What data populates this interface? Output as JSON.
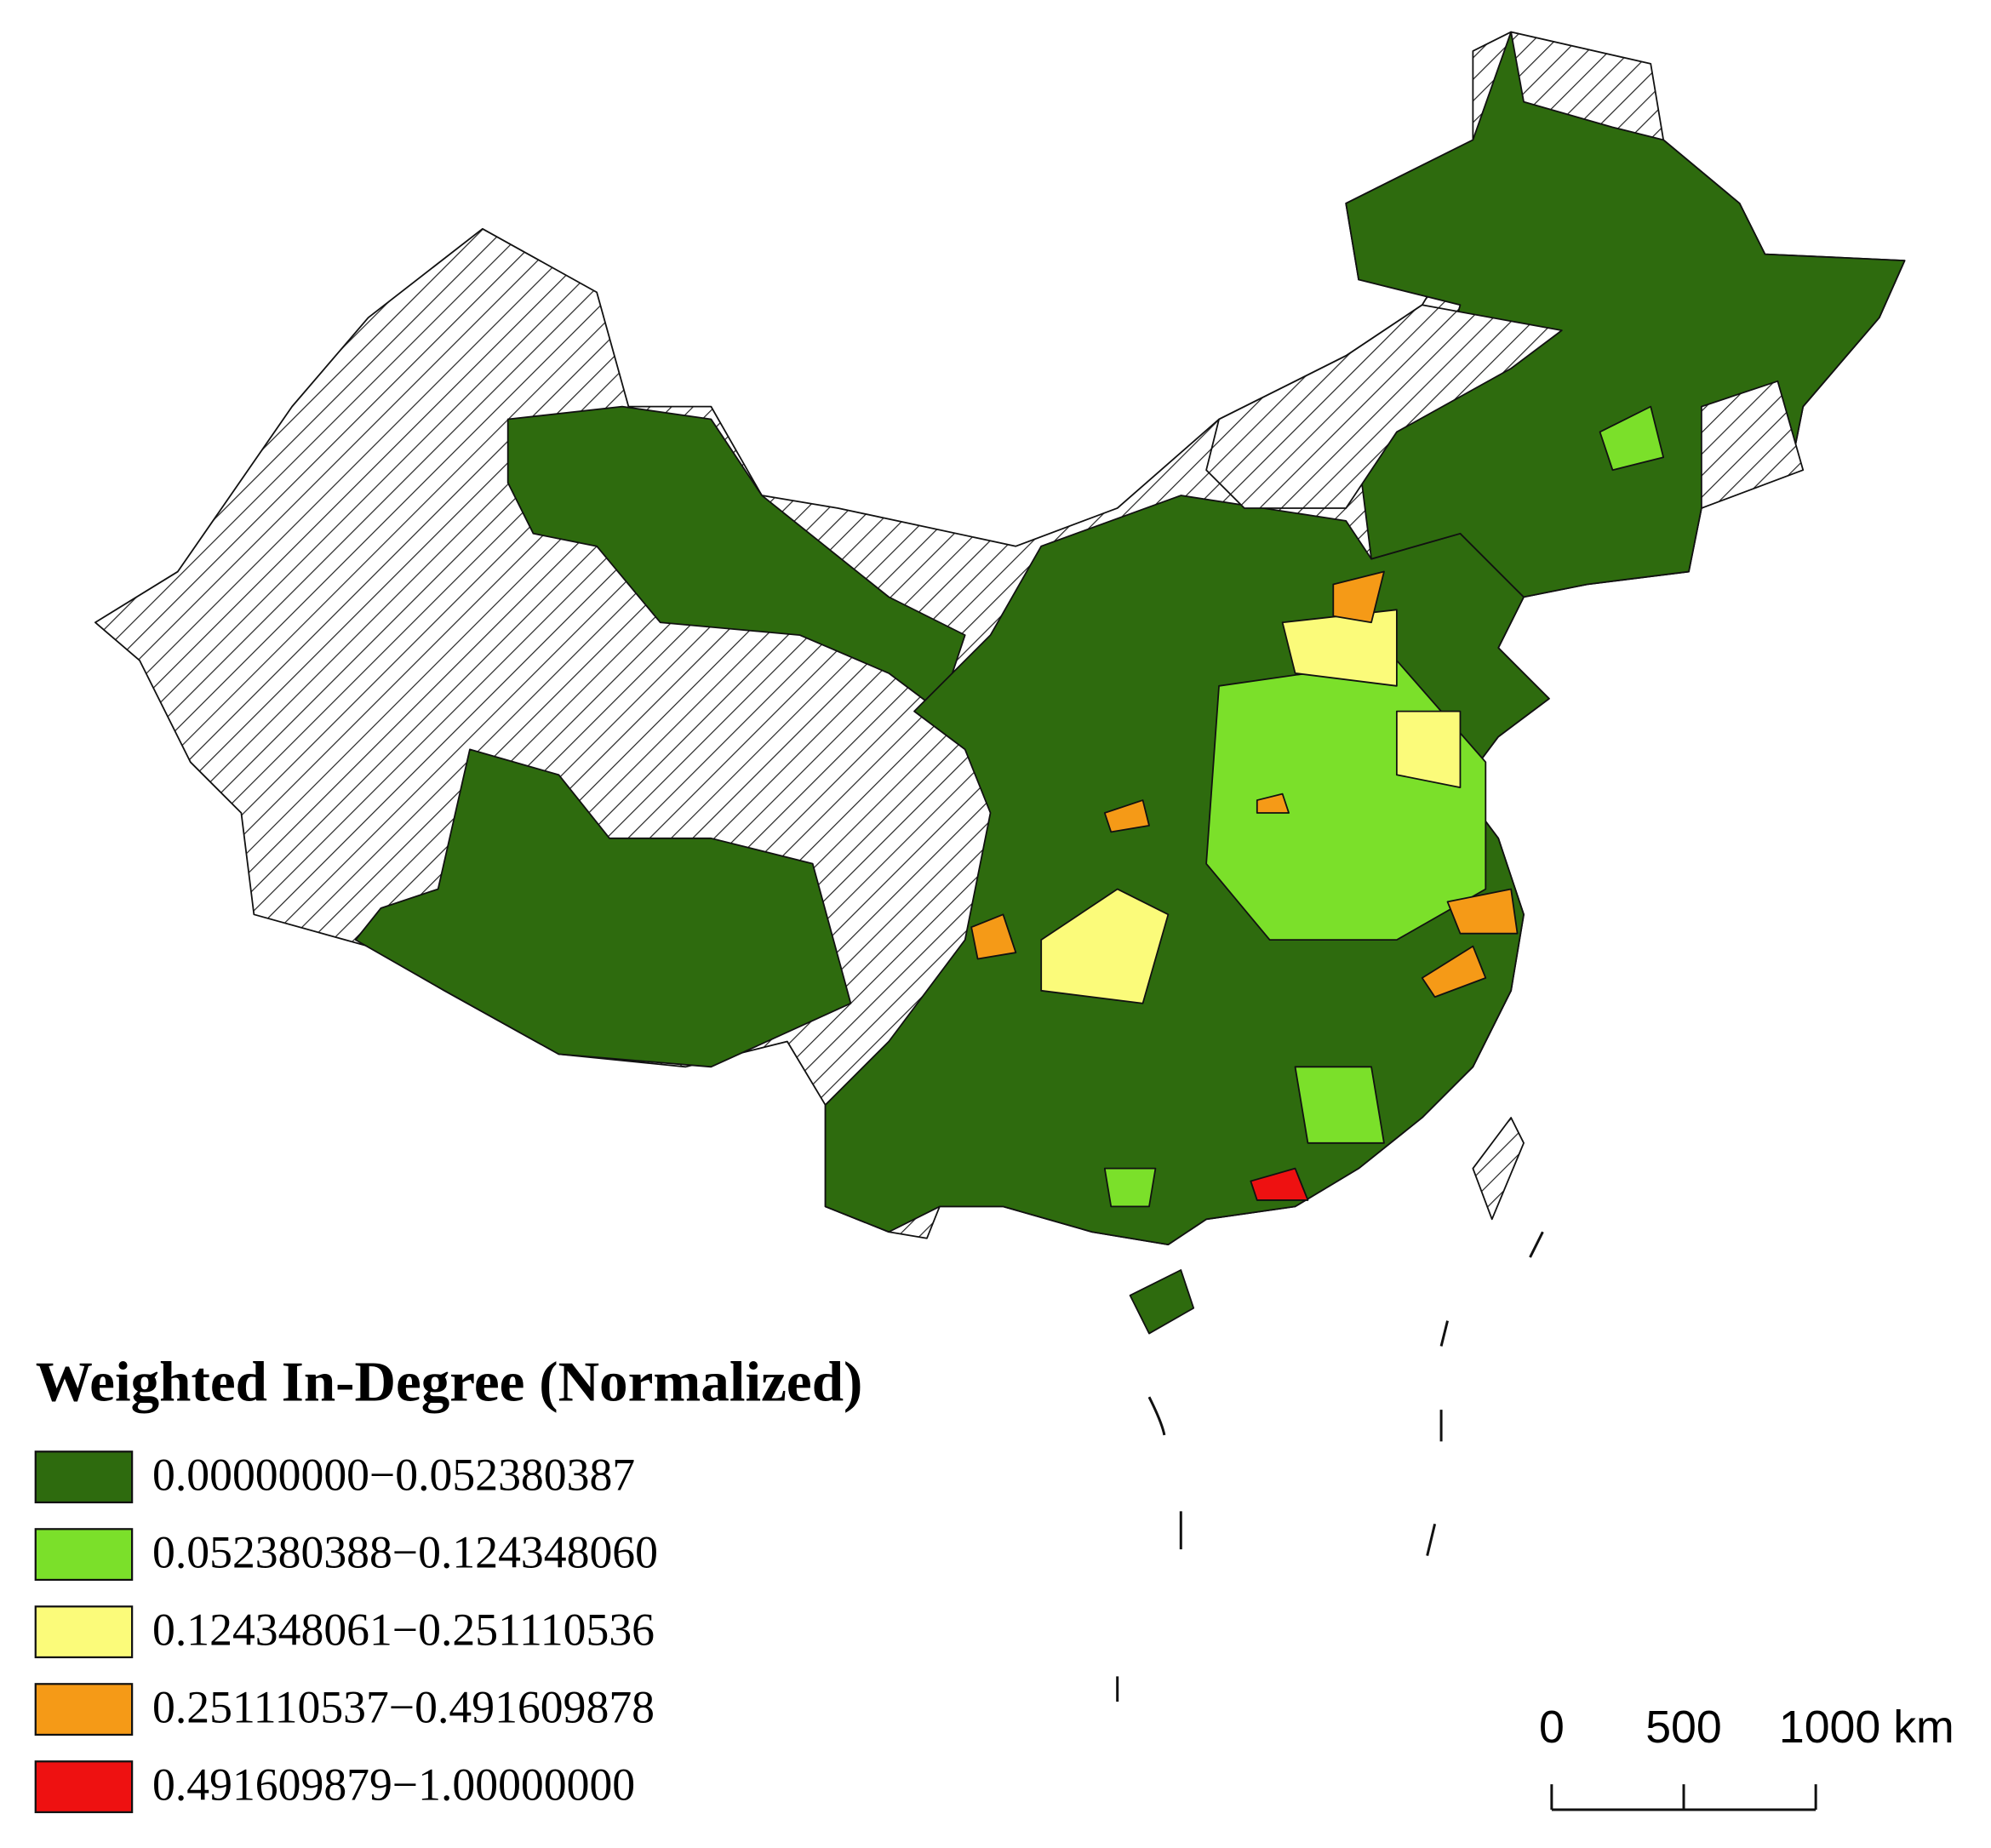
{
  "legend": {
    "title": "Weighted In-Degree (Normalized)",
    "classes": [
      {
        "label": "0.00000000−0.052380387",
        "color": "#2e6b0e"
      },
      {
        "label": "0.052380388−0.124348060",
        "color": "#7be02a"
      },
      {
        "label": "0.124348061−0.251110536",
        "color": "#fbfb7a"
      },
      {
        "label": "0.251110537−0.491609878",
        "color": "#f59a17"
      },
      {
        "label": "0.491609879−1.00000000",
        "color": "#ee1111"
      }
    ]
  },
  "scale_bar": {
    "ticks": [
      {
        "value": 0,
        "label": "0"
      },
      {
        "value": 500,
        "label": "500"
      },
      {
        "value": 1000,
        "label": "1000 km"
      }
    ]
  }
}
